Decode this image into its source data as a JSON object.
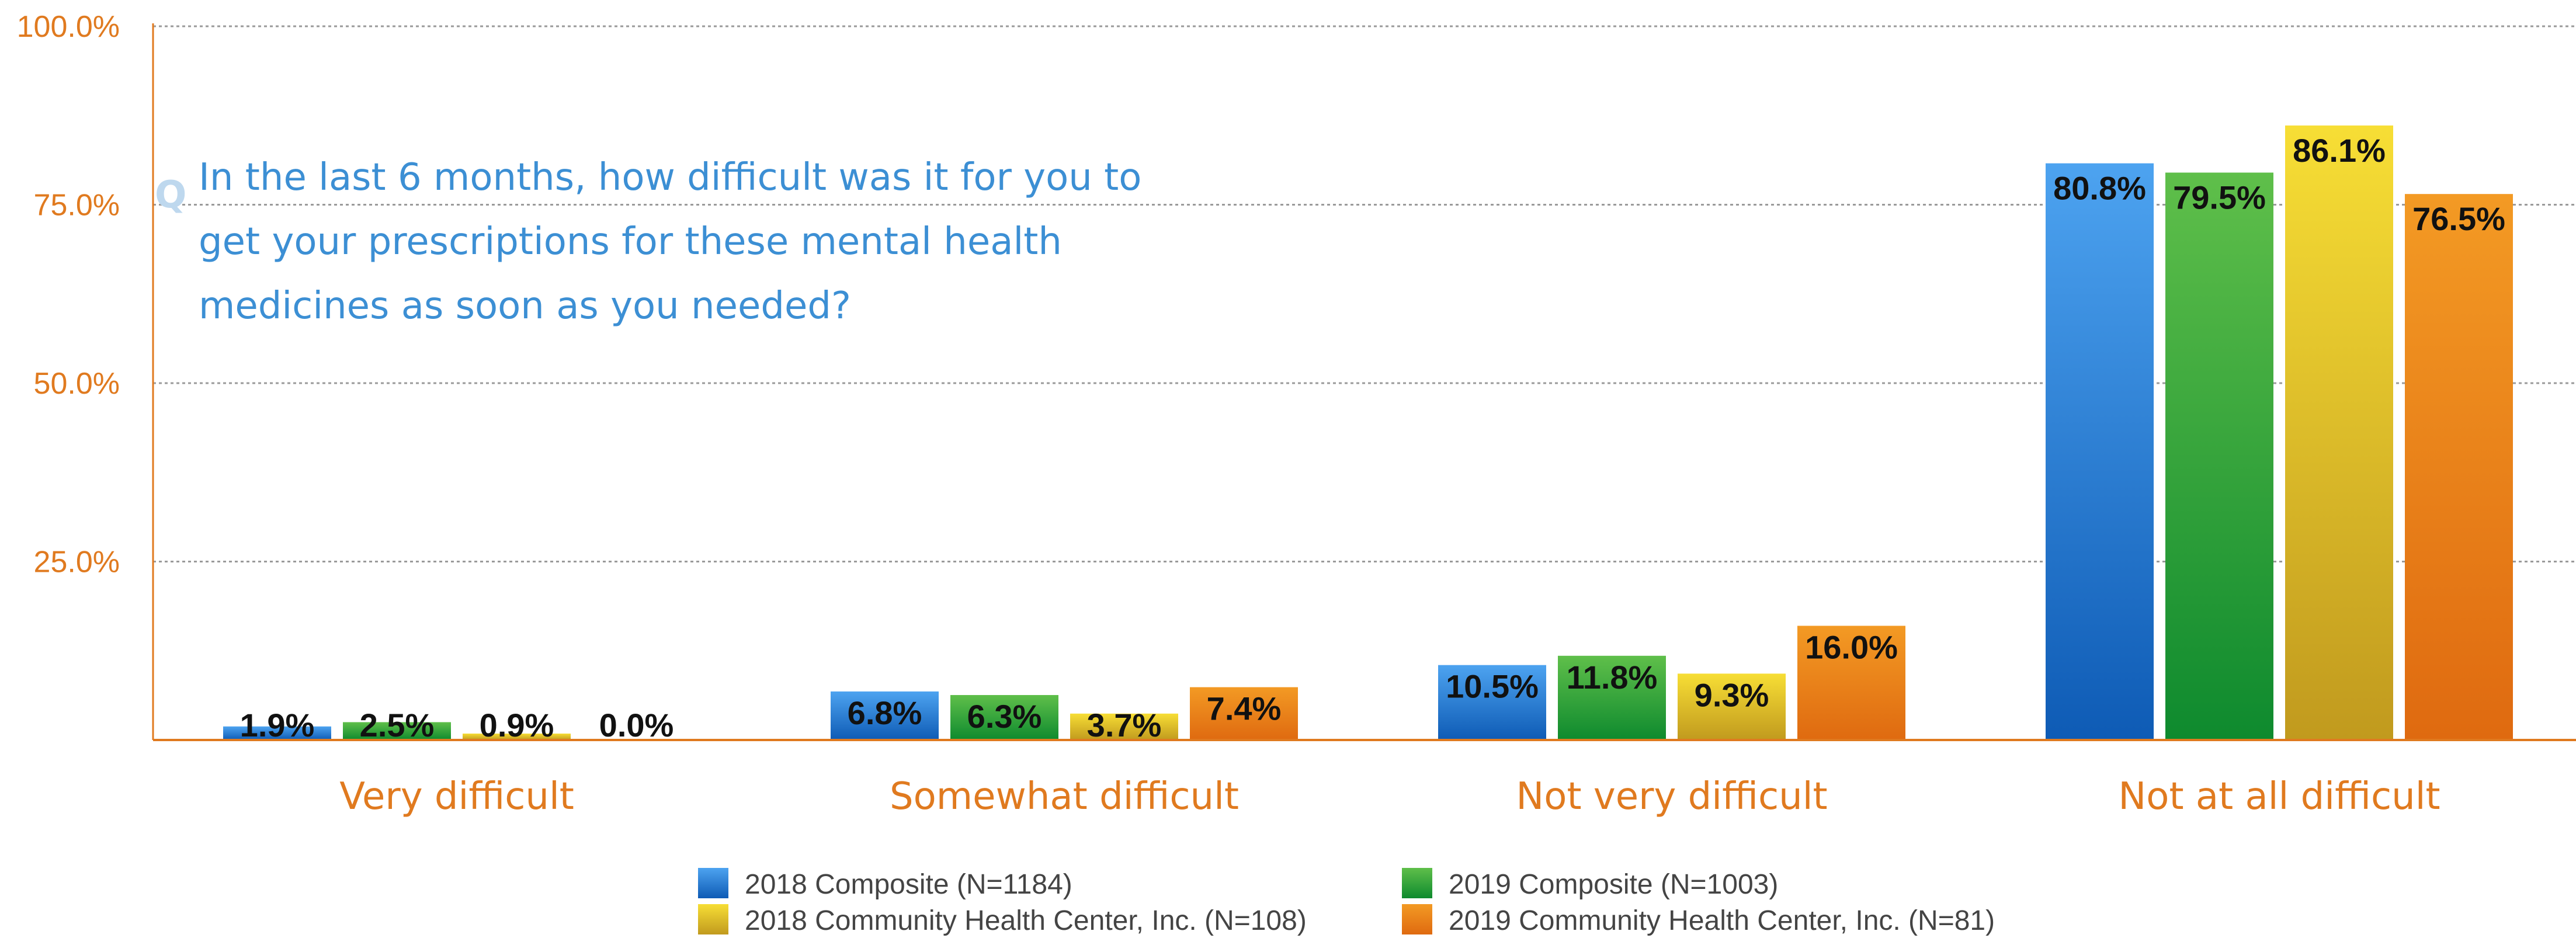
{
  "chart_data": {
    "type": "bar",
    "question_mark": "Q",
    "question_lines": [
      "In the last 6 months, how difficult was it for you to",
      "get your prescriptions for these mental health",
      "medicines as soon as you needed?"
    ],
    "categories": [
      "Very difficult",
      "Somewhat difficult",
      "Not very difficult",
      "Not at all difficult"
    ],
    "series": [
      {
        "name": "2018 Composite (N=1184)",
        "values": [
          1.9,
          6.8,
          10.5,
          80.8
        ],
        "labels": [
          "1.9%",
          "6.8%",
          "10.5%",
          "80.8%"
        ],
        "color": "#2E86DE",
        "color_top": "#4DA3F0",
        "color_bottom": "#0E5BB5"
      },
      {
        "name": "2019 Composite (N=1003)",
        "values": [
          2.5,
          6.3,
          11.8,
          79.5
        ],
        "labels": [
          "2.5%",
          "6.3%",
          "11.8%",
          "79.5%"
        ],
        "color": "#3DA63D",
        "color_top": "#5FBF4A",
        "color_bottom": "#0E8A2E"
      },
      {
        "name": "2018 Community Health Center, Inc. (N=108)",
        "values": [
          0.9,
          3.7,
          9.3,
          86.1
        ],
        "labels": [
          "0.9%",
          "3.7%",
          "9.3%",
          "86.1%"
        ],
        "color": "#E8C830",
        "color_top": "#F7DE35",
        "color_bottom": "#C19A1E"
      },
      {
        "name": "2019 Community Health Center, Inc. (N=81)",
        "values": [
          0.0,
          7.4,
          16.0,
          76.5
        ],
        "labels": [
          "0.0%",
          "7.4%",
          "16.0%",
          "76.5%"
        ],
        "color": "#EE8A1E",
        "color_top": "#F39A24",
        "color_bottom": "#DF6A10"
      }
    ],
    "yticks": [
      25,
      50,
      75,
      100
    ],
    "ytick_labels": [
      "25.0%",
      "50.0%",
      "75.0%",
      "100.0%"
    ],
    "ylim": [
      0,
      100
    ],
    "grid": true,
    "legend_position": "bottom-center",
    "axis_color": "#E07A1F",
    "question_color": "#3C8FD4",
    "question_mark_color": "#BED8EE"
  }
}
